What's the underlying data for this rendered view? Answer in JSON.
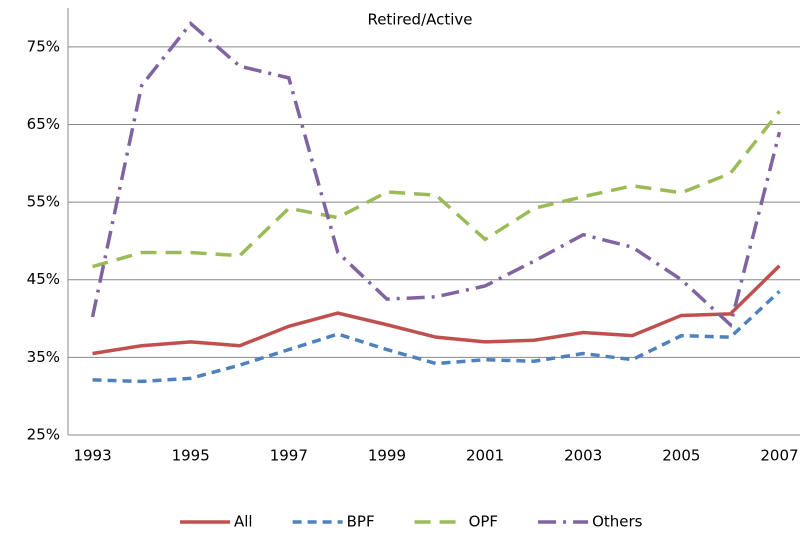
{
  "chart_data": {
    "type": "line",
    "title": "Retired/Active",
    "x": [
      1993,
      1994,
      1995,
      1996,
      1997,
      1998,
      1999,
      2000,
      2001,
      2002,
      2003,
      2004,
      2005,
      2006,
      2007
    ],
    "xlim": [
      1992.5,
      2007.5
    ],
    "xticks": [
      1993,
      1995,
      1997,
      1999,
      2001,
      2003,
      2005,
      2007
    ],
    "ylim": [
      25,
      80
    ],
    "yticks": [
      {
        "value": 25,
        "label": "25%"
      },
      {
        "value": 35,
        "label": "35%"
      },
      {
        "value": 45,
        "label": "45%"
      },
      {
        "value": 55,
        "label": "55%"
      },
      {
        "value": 65,
        "label": "65%"
      },
      {
        "value": 75,
        "label": "75%"
      }
    ],
    "grid": true,
    "legend": "bottom",
    "series": [
      {
        "name": "All",
        "color": "#c0504d",
        "dash": "solid",
        "values": [
          35.5,
          36.5,
          37,
          36.5,
          39,
          40.7,
          39.2,
          37.6,
          37,
          37.2,
          38.2,
          37.8,
          40.4,
          40.6,
          46.8
        ]
      },
      {
        "name": "BPF",
        "color": "#4f81bd",
        "dash": "dashed",
        "values": [
          32.1,
          31.9,
          32.3,
          34,
          36,
          38,
          36,
          34.2,
          34.7,
          34.5,
          35.5,
          34.7,
          37.8,
          37.6,
          43.5
        ]
      },
      {
        "name": "OPF",
        "color": "#9bbb59",
        "dash": "longdash",
        "values": [
          46.7,
          48.5,
          48.5,
          48.1,
          54.2,
          53,
          56.3,
          55.9,
          50.2,
          54.2,
          55.7,
          57.1,
          56.2,
          58.7,
          66.7
        ]
      },
      {
        "name": "Others",
        "color": "#8064a2",
        "dash": "dashdot",
        "values": [
          40.2,
          70,
          78,
          72.5,
          71,
          48.5,
          42.5,
          42.8,
          44.2,
          47.4,
          50.8,
          49.2,
          45,
          39.2,
          64
        ]
      }
    ]
  }
}
